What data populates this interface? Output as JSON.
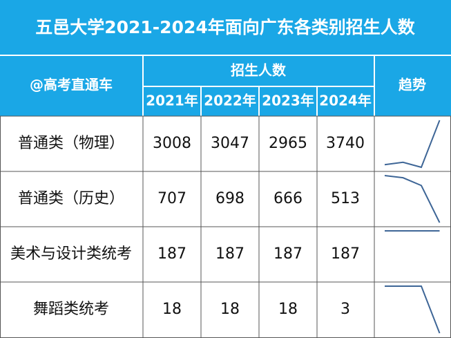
{
  "header": {
    "title": "五邑大学2021-2024年面向广东各类别招生人数",
    "corner": "@高考直通车",
    "group": "招生人数",
    "years": [
      "2021年",
      "2022年",
      "2023年",
      "2024年"
    ],
    "trend": "趋势"
  },
  "table": {
    "rows": [
      {
        "label": "普通类（物理）",
        "values": [
          3008,
          3047,
          2965,
          3740
        ]
      },
      {
        "label": "普通类（历史）",
        "values": [
          707,
          698,
          666,
          513
        ]
      },
      {
        "label": "美术与设计类统考",
        "values": [
          187,
          187,
          187,
          187
        ]
      },
      {
        "label": "舞蹈类统考",
        "values": [
          18,
          18,
          18,
          3
        ]
      }
    ]
  }
}
